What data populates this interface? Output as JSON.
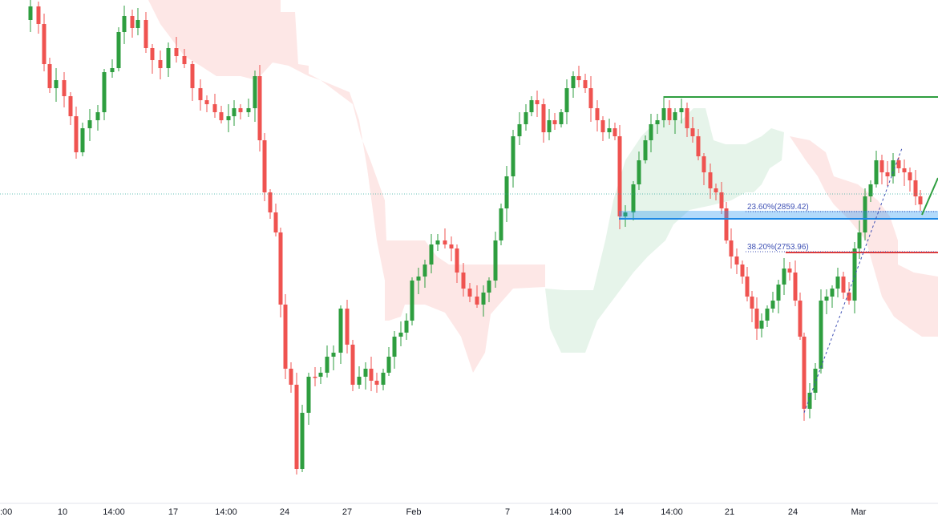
{
  "chart_data": {
    "type": "candlestick",
    "colors": {
      "up": "#2E9E3F",
      "down": "#EF5350",
      "cloud_bullish": "#E6F4EA",
      "cloud_bearish": "#FDE7E6",
      "support_zone": "#2196F3",
      "resistance_line": "#2E9E3F",
      "level_line": "#E53935",
      "fib_text": "#3F51B5"
    },
    "x_ticks": [
      ":00",
      "10",
      "14:00",
      "17",
      "14:00",
      "24",
      "27",
      "Feb",
      "7",
      "14:00",
      "14",
      "14:00",
      "21",
      "24",
      "Mar"
    ],
    "fibonacci": [
      {
        "label": "23.60%(2859.42)"
      },
      {
        "label": "38.20%(2753.96)"
      }
    ],
    "grid": false,
    "legend": "none"
  }
}
